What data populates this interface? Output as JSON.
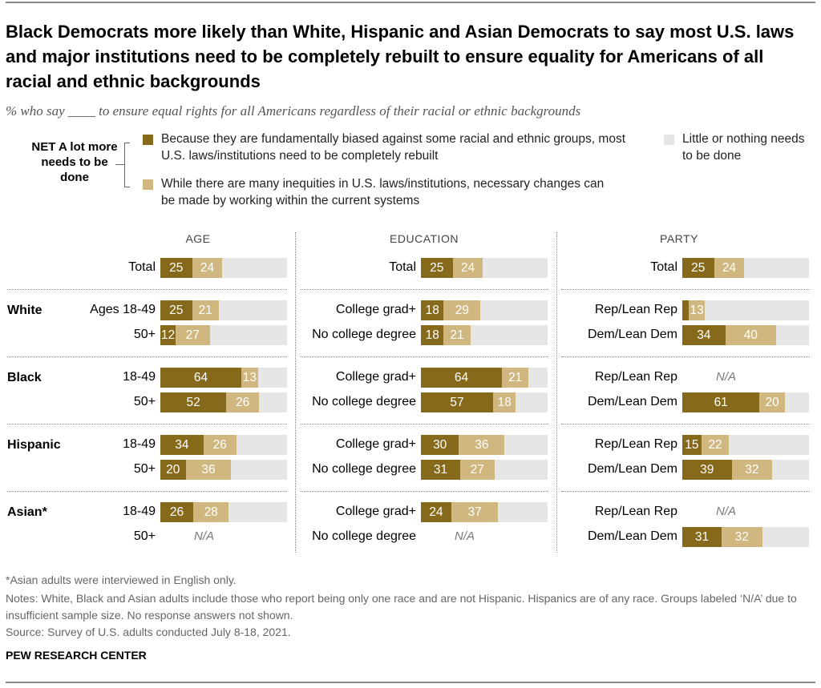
{
  "title": "Black Democrats more likely than White, Hispanic and Asian Democrats to say most U.S. laws and major institutions need to be completely rebuilt to ensure equality for Americans of all racial and ethnic backgrounds",
  "subtitle": "% who say ____ to ensure equal rights for all Americans regardless of their racial or ethnic backgrounds",
  "legend": {
    "net_label": "NET A lot more needs to be done",
    "item1": "Because they are fundamentally biased against some racial and ethnic groups, most U.S. laws/institutions need to be completely rebuilt",
    "item2": "While there are many inequities in U.S. laws/institutions, necessary changes can be made by working within the current systems",
    "item3": "Little or nothing needs to be done"
  },
  "colors": {
    "rebuilt": "#86691a",
    "within": "#cfb77f",
    "remainder": "#e6e6e6"
  },
  "chart_data": {
    "type": "bar",
    "stacked": true,
    "scale_max": 100,
    "na_label": "N/A",
    "series_names": [
      "Completely rebuilt",
      "Working within current systems"
    ],
    "groups": [
      "White",
      "Black",
      "Hispanic",
      "Asian*"
    ],
    "panels": [
      {
        "title": "AGE",
        "total": {
          "label": "Total",
          "values": [
            25,
            24
          ]
        },
        "rows": [
          [
            {
              "label": "Ages 18-49",
              "values": [
                25,
                21
              ]
            },
            {
              "label": "50+",
              "values": [
                12,
                27
              ]
            }
          ],
          [
            {
              "label": "18-49",
              "values": [
                64,
                13
              ]
            },
            {
              "label": "50+",
              "values": [
                52,
                26
              ]
            }
          ],
          [
            {
              "label": "18-49",
              "values": [
                34,
                26
              ]
            },
            {
              "label": "50+",
              "values": [
                20,
                36
              ]
            }
          ],
          [
            {
              "label": "18-49",
              "values": [
                26,
                28
              ]
            },
            {
              "label": "50+",
              "values": null
            }
          ]
        ]
      },
      {
        "title": "EDUCATION",
        "total": {
          "label": "Total",
          "values": [
            25,
            24
          ]
        },
        "rows": [
          [
            {
              "label": "College grad+",
              "values": [
                18,
                29
              ]
            },
            {
              "label": "No college degree",
              "values": [
                18,
                21
              ]
            }
          ],
          [
            {
              "label": "College grad+",
              "values": [
                64,
                21
              ]
            },
            {
              "label": "No college degree",
              "values": [
                57,
                18
              ]
            }
          ],
          [
            {
              "label": "College grad+",
              "values": [
                30,
                36
              ]
            },
            {
              "label": "No college degree",
              "values": [
                31,
                27
              ]
            }
          ],
          [
            {
              "label": "College grad+",
              "values": [
                24,
                37
              ]
            },
            {
              "label": "No college degree",
              "values": null
            }
          ]
        ]
      },
      {
        "title": "PARTY",
        "total": {
          "label": "Total",
          "values": [
            25,
            24
          ]
        },
        "rows": [
          [
            {
              "label": "Rep/Lean Rep",
              "values": [
                5,
                13
              ]
            },
            {
              "label": "Dem/Lean Dem",
              "values": [
                34,
                40
              ]
            }
          ],
          [
            {
              "label": "Rep/Lean Rep",
              "values": null
            },
            {
              "label": "Dem/Lean Dem",
              "values": [
                61,
                20
              ]
            }
          ],
          [
            {
              "label": "Rep/Lean Rep",
              "values": [
                15,
                22
              ]
            },
            {
              "label": "Dem/Lean Dem",
              "values": [
                39,
                32
              ]
            }
          ],
          [
            {
              "label": "Rep/Lean Rep",
              "values": null
            },
            {
              "label": "Dem/Lean Dem",
              "values": [
                31,
                32
              ]
            }
          ]
        ]
      }
    ]
  },
  "notes": {
    "asterisk": "*Asian adults were interviewed in English only.",
    "notes": "Notes: White, Black and Asian adults include those who report being only one race and are not Hispanic. Hispanics are of any race. Groups labeled ‘N/A’ due to insufficient sample size. No response answers not shown.",
    "source": "Source: Survey of U.S. adults conducted July 8-18, 2021."
  },
  "brand": "PEW RESEARCH CENTER"
}
